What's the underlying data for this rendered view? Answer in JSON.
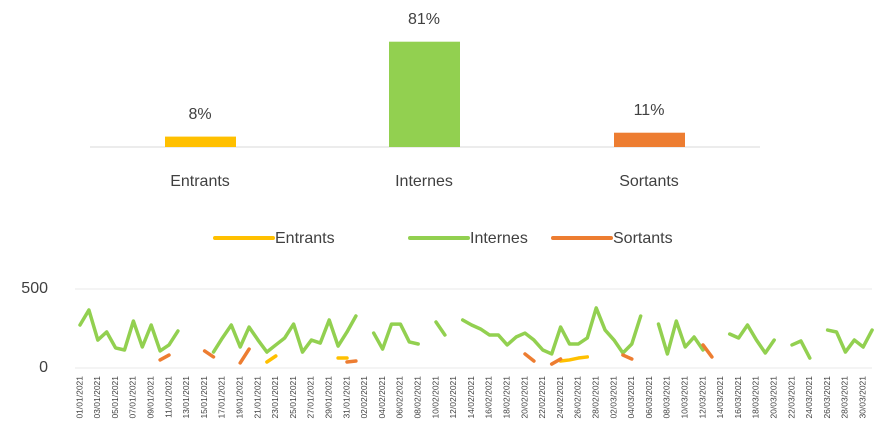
{
  "chart_data": [
    {
      "type": "bar",
      "categories": [
        "Entrants",
        "Internes",
        "Sortants"
      ],
      "values": [
        8,
        81,
        11
      ],
      "value_labels": [
        "8%",
        "81%",
        "11%"
      ],
      "colors": [
        "#FFC000",
        "#92D050",
        "#ED7D31"
      ]
    },
    {
      "type": "line",
      "categories": [
        "01/01/2021",
        null,
        "03/01/2021",
        null,
        "05/01/2021",
        null,
        "07/01/2021",
        null,
        "09/01/2021",
        null,
        "11/01/2021",
        null,
        "13/01/2021",
        null,
        "15/01/2021",
        null,
        "17/01/2021",
        null,
        "19/01/2021",
        null,
        "21/01/2021",
        null,
        "23/01/2021",
        null,
        "25/01/2021",
        null,
        "27/01/2021",
        null,
        "29/01/2021",
        null,
        "31/01/2021",
        null,
        "02/02/2021",
        null,
        "04/02/2021",
        null,
        "06/02/2021",
        null,
        "08/02/2021",
        null,
        "10/02/2021",
        null,
        "12/02/2021",
        null,
        "14/02/2021",
        null,
        "16/02/2021",
        null,
        "18/02/2021",
        null,
        "20/02/2021",
        null,
        "22/02/2021",
        null,
        "24/02/2021",
        null,
        "26/02/2021",
        null,
        "28/02/2021",
        null,
        "02/03/2021",
        null,
        "04/03/2021",
        null,
        "06/03/2021",
        null,
        "08/03/2021",
        null,
        "10/03/2021",
        null,
        "12/03/2021",
        null,
        "14/03/2021",
        null,
        "16/03/2021",
        null,
        "18/03/2021",
        null,
        "20/03/2021",
        null,
        "22/03/2021",
        null,
        "24/03/2021",
        null,
        "26/03/2021",
        null,
        "28/03/2021",
        null,
        "30/03/2021",
        null
      ],
      "series": [
        {
          "name": "Entrants",
          "color": "#FFC000",
          "values": [
            null,
            null,
            null,
            null,
            null,
            null,
            null,
            null,
            null,
            null,
            null,
            null,
            null,
            null,
            null,
            null,
            null,
            null,
            null,
            null,
            null,
            38,
            76,
            null,
            null,
            null,
            null,
            null,
            null,
            63,
            63,
            null,
            null,
            null,
            null,
            null,
            null,
            null,
            null,
            null,
            null,
            null,
            null,
            null,
            null,
            null,
            null,
            null,
            null,
            null,
            null,
            null,
            null,
            null,
            44,
            51,
            63,
            70,
            null,
            null,
            null,
            null,
            null,
            null,
            null,
            null,
            null,
            null,
            null,
            null,
            null,
            null,
            null,
            null,
            null,
            null,
            null,
            null,
            null,
            null,
            null,
            null,
            null,
            null,
            null,
            null,
            null,
            null,
            null,
            null
          ]
        },
        {
          "name": "Internes",
          "color": "#92D050",
          "values": [
            272,
            367,
            177,
            228,
            127,
            114,
            297,
            133,
            272,
            108,
            146,
            234,
            null,
            null,
            null,
            101,
            190,
            272,
            133,
            259,
            177,
            101,
            146,
            190,
            278,
            101,
            177,
            158,
            304,
            139,
            228,
            329,
            null,
            221,
            120,
            278,
            278,
            165,
            152,
            null,
            291,
            209,
            null,
            304,
            272,
            247,
            209,
            209,
            146,
            196,
            221,
            177,
            114,
            89,
            259,
            152,
            152,
            190,
            380,
            240,
            177,
            95,
            152,
            329,
            null,
            278,
            89,
            297,
            133,
            196,
            114,
            null,
            null,
            215,
            190,
            272,
            177,
            95,
            177,
            null,
            146,
            171,
            63,
            null,
            240,
            228,
            101,
            177,
            133,
            240
          ]
        },
        {
          "name": "Sortants",
          "color": "#ED7D31",
          "values": [
            null,
            null,
            null,
            null,
            null,
            null,
            null,
            null,
            null,
            51,
            82,
            null,
            null,
            null,
            108,
            70,
            null,
            null,
            32,
            120,
            null,
            null,
            null,
            null,
            null,
            null,
            null,
            null,
            null,
            null,
            38,
            44,
            null,
            null,
            null,
            null,
            null,
            null,
            null,
            null,
            null,
            null,
            null,
            null,
            null,
            null,
            null,
            null,
            null,
            null,
            89,
            44,
            null,
            25,
            57,
            null,
            null,
            null,
            null,
            null,
            null,
            82,
            57,
            null,
            null,
            null,
            null,
            null,
            null,
            null,
            146,
            70,
            null,
            null,
            null,
            null,
            null,
            null,
            null,
            null,
            null,
            null,
            null,
            null,
            null,
            null,
            null,
            null,
            null,
            null
          ]
        }
      ],
      "ylim": [
        0,
        500
      ],
      "yticks": [
        0,
        500
      ],
      "grid": true
    }
  ]
}
